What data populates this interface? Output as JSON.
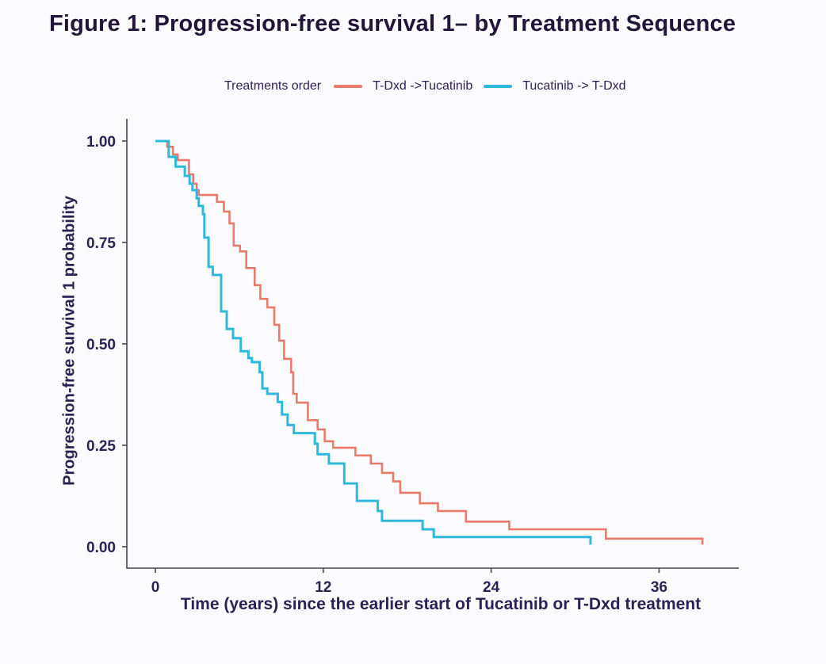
{
  "title": "Figure 1: Progression-free survival 1– by Treatment Sequence",
  "legend": {
    "title": "Treatments order",
    "items": [
      {
        "label": "T-Dxd ->Tucatinib",
        "color": "#e87b6b"
      },
      {
        "label": "Tucatinib -> T-Dxd",
        "color": "#2db8dc"
      }
    ]
  },
  "chart_data": {
    "type": "line",
    "subtype": "kaplan-meier-step-survival",
    "title": "Figure 1: Progression-free survival 1– by Treatment Sequence",
    "xlabel": "Time (years) since the earlier start of Tucatinib or T-Dxd treatment",
    "ylabel": "Progression-free survival 1 probability",
    "legend_title": "Treatments order",
    "legend_position": "top",
    "grid": false,
    "xlim": [
      -2,
      41.7
    ],
    "ylim": [
      0,
      1.0
    ],
    "x_ticks": [
      {
        "value": 0,
        "label": "0"
      },
      {
        "value": 12,
        "label": "12"
      },
      {
        "value": 24,
        "label": "24"
      },
      {
        "value": 36,
        "label": "36"
      }
    ],
    "y_ticks": [
      {
        "value": 1.0,
        "label": "1.00"
      },
      {
        "value": 0.75,
        "label": "0.75"
      },
      {
        "value": 0.5,
        "label": "0.50"
      },
      {
        "value": 0.25,
        "label": "0.25"
      },
      {
        "value": 0.0,
        "label": "0.00"
      }
    ],
    "series": [
      {
        "name": "T-Dxd ->Tucatinib",
        "color": "#e87b6b",
        "steps": [
          [
            0,
            1.0
          ],
          [
            0.85,
            0.986
          ],
          [
            1.25,
            0.967
          ],
          [
            1.6,
            0.953
          ],
          [
            2.4,
            0.918
          ],
          [
            2.7,
            0.895
          ],
          [
            2.95,
            0.879
          ],
          [
            3.1,
            0.867
          ],
          [
            4.4,
            0.85
          ],
          [
            4.9,
            0.826
          ],
          [
            5.3,
            0.797
          ],
          [
            5.6,
            0.742
          ],
          [
            6.05,
            0.728
          ],
          [
            6.5,
            0.687
          ],
          [
            7.1,
            0.645
          ],
          [
            7.5,
            0.611
          ],
          [
            8.0,
            0.59
          ],
          [
            8.5,
            0.547
          ],
          [
            8.85,
            0.508
          ],
          [
            9.2,
            0.463
          ],
          [
            9.7,
            0.43
          ],
          [
            9.85,
            0.377
          ],
          [
            10.1,
            0.355
          ],
          [
            10.9,
            0.312
          ],
          [
            11.6,
            0.289
          ],
          [
            12.1,
            0.26
          ],
          [
            12.7,
            0.244
          ],
          [
            14.3,
            0.225
          ],
          [
            15.4,
            0.205
          ],
          [
            16.2,
            0.182
          ],
          [
            17.0,
            0.161
          ],
          [
            17.5,
            0.133
          ],
          [
            18.9,
            0.107
          ],
          [
            20.2,
            0.088
          ],
          [
            22.2,
            0.062
          ],
          [
            25.3,
            0.043
          ],
          [
            32.2,
            0.02
          ],
          [
            39.1,
            0.005
          ]
        ]
      },
      {
        "name": "Tucatinib -> T-Dxd",
        "color": "#2db8dc",
        "steps": [
          [
            0,
            1.0
          ],
          [
            0.95,
            0.961
          ],
          [
            1.45,
            0.937
          ],
          [
            2.1,
            0.914
          ],
          [
            2.45,
            0.895
          ],
          [
            2.65,
            0.879
          ],
          [
            2.95,
            0.859
          ],
          [
            3.1,
            0.84
          ],
          [
            3.4,
            0.82
          ],
          [
            3.5,
            0.762
          ],
          [
            3.8,
            0.69
          ],
          [
            4.1,
            0.67
          ],
          [
            4.7,
            0.58
          ],
          [
            5.1,
            0.537
          ],
          [
            5.55,
            0.514
          ],
          [
            6.1,
            0.482
          ],
          [
            6.65,
            0.465
          ],
          [
            6.9,
            0.455
          ],
          [
            7.45,
            0.43
          ],
          [
            7.65,
            0.39
          ],
          [
            8.0,
            0.377
          ],
          [
            8.75,
            0.357
          ],
          [
            9.05,
            0.326
          ],
          [
            9.45,
            0.3
          ],
          [
            9.9,
            0.28
          ],
          [
            11.4,
            0.254
          ],
          [
            11.6,
            0.228
          ],
          [
            12.4,
            0.205
          ],
          [
            13.5,
            0.156
          ],
          [
            14.4,
            0.113
          ],
          [
            15.9,
            0.088
          ],
          [
            16.2,
            0.064
          ],
          [
            19.1,
            0.043
          ],
          [
            19.9,
            0.024
          ],
          [
            31.1,
            0.005
          ]
        ]
      }
    ]
  },
  "colors": {
    "background": "#fbfbfe",
    "axis_line": "#46464e",
    "title_text": "#221538",
    "axis_text": "#2b2153",
    "series_tdxd_first": "#e87b6b",
    "series_tucatinib_first": "#2db8dc"
  }
}
